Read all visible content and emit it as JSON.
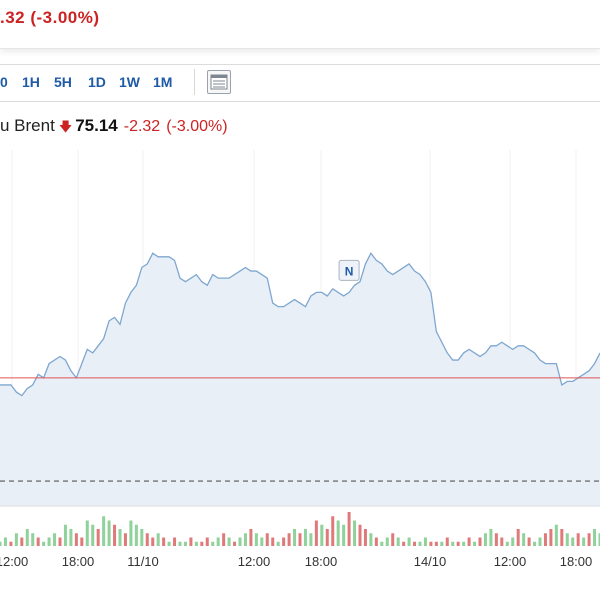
{
  "header": {
    "change_text": ".32  (-3.00%)"
  },
  "toolbar": {
    "timeframes": [
      "0",
      "1H",
      "5H",
      "1D",
      "1W",
      "1M"
    ],
    "table_icon": "table-view-icon"
  },
  "quote": {
    "name": "u Brent",
    "direction_icon": "down-arrow-icon",
    "price": "75.14",
    "change": "-2.32",
    "change_pct": "(-3.00%)"
  },
  "colors": {
    "line": "#7fa7cf",
    "fill": "#e8eff7",
    "negative": "#cc2222",
    "volume_up": "#8fd29a",
    "volume_down": "#e07a7a",
    "baseline": "#e05555",
    "accent": "#1f5aa6"
  },
  "chart_data": {
    "type": "area",
    "x_tick_labels": [
      "12:00",
      "18:00",
      "11/10",
      "12:00",
      "18:00",
      "14/10",
      "12:00",
      "18:00"
    ],
    "ylim": [
      0,
      100
    ],
    "reference_level": 36,
    "dashed_level": 7,
    "marker": {
      "label": "N",
      "index": 64
    },
    "series": [
      {
        "values": [
          34,
          34,
          34,
          32,
          31,
          33,
          34,
          37,
          36,
          40,
          41,
          42,
          41,
          38,
          36,
          40,
          44,
          43,
          45,
          47,
          52,
          53,
          51,
          57,
          60,
          62,
          67,
          68,
          71,
          70,
          70,
          70,
          69,
          64,
          63,
          64,
          65,
          63,
          62,
          65,
          64,
          64,
          64,
          65,
          66,
          67,
          66,
          66,
          65,
          64,
          57,
          56,
          56,
          57,
          58,
          57,
          56,
          59,
          60,
          60,
          59,
          61,
          60,
          59,
          60,
          62,
          63,
          68,
          71,
          69,
          68,
          66,
          65,
          66,
          67,
          68,
          66,
          65,
          63,
          60,
          49,
          46,
          43,
          41,
          41,
          43,
          44,
          43,
          42,
          43,
          45,
          45,
          46,
          45,
          44,
          45,
          45,
          44,
          43,
          41,
          40,
          40,
          40,
          34,
          35,
          35,
          36,
          37,
          38,
          40,
          43
        ]
      }
    ],
    "volume": {
      "values": [
        1,
        2,
        1,
        3,
        2,
        4,
        3,
        2,
        1,
        2,
        3,
        2,
        5,
        4,
        3,
        2,
        6,
        5,
        4,
        7,
        6,
        5,
        4,
        3,
        6,
        5,
        4,
        3,
        2,
        3,
        2,
        1,
        2,
        1,
        1,
        2,
        1,
        1,
        2,
        1,
        2,
        3,
        2,
        1,
        2,
        3,
        4,
        3,
        2,
        3,
        2,
        1,
        2,
        3,
        4,
        3,
        4,
        3,
        6,
        5,
        4,
        7,
        6,
        5,
        8,
        6,
        5,
        4,
        3,
        2,
        1,
        2,
        3,
        2,
        1,
        2,
        1,
        1,
        2,
        1,
        1,
        1,
        2,
        1,
        1,
        1,
        2,
        1,
        2,
        3,
        4,
        3,
        2,
        1,
        2,
        4,
        3,
        2,
        1,
        2,
        3,
        4,
        5,
        4,
        3,
        2,
        3,
        2,
        3,
        4,
        3
      ],
      "up": [
        1,
        1,
        0,
        1,
        0,
        1,
        1,
        0,
        1,
        1,
        1,
        0,
        1,
        1,
        0,
        0,
        1,
        1,
        0,
        1,
        1,
        0,
        1,
        0,
        1,
        1,
        1,
        0,
        0,
        1,
        0,
        1,
        0,
        1,
        1,
        0,
        1,
        0,
        0,
        1,
        1,
        0,
        1,
        0,
        1,
        1,
        0,
        1,
        1,
        0,
        0,
        1,
        0,
        0,
        1,
        0,
        1,
        1,
        0,
        1,
        0,
        0,
        1,
        1,
        0,
        1,
        0,
        0,
        1,
        0,
        1,
        1,
        0,
        1,
        0,
        1,
        0,
        1,
        1,
        0,
        0,
        1,
        0,
        1,
        0,
        1,
        0,
        1,
        0,
        1,
        1,
        0,
        0,
        1,
        1,
        0,
        1,
        0,
        1,
        1,
        0,
        0,
        1,
        0,
        1,
        1,
        0,
        1,
        0,
        1,
        1
      ]
    }
  }
}
